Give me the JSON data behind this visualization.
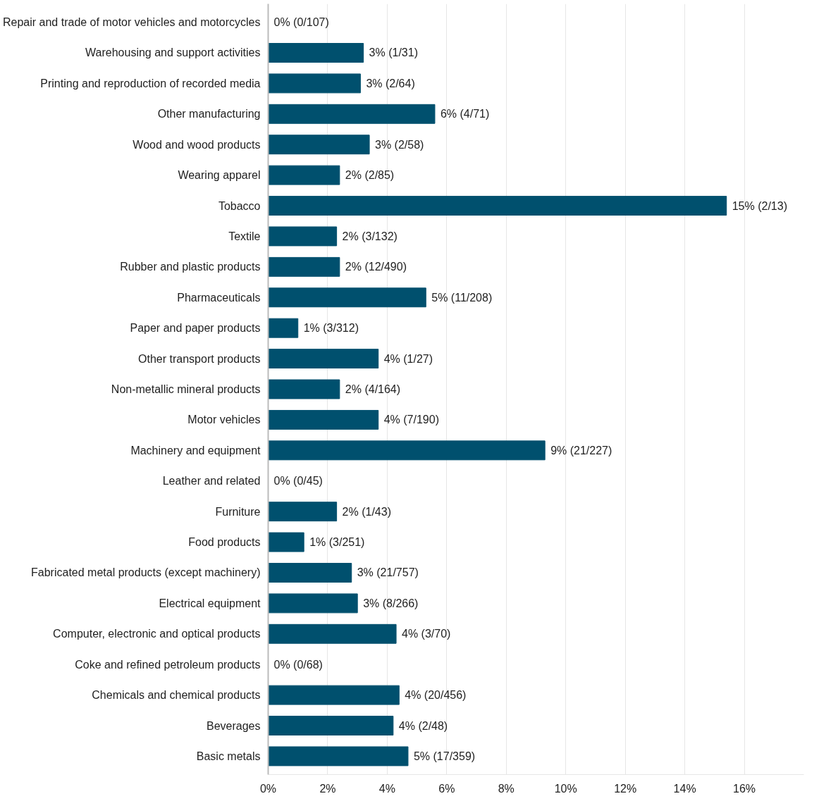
{
  "chart_data": {
    "type": "bar",
    "orientation": "horizontal",
    "categories": [
      "Repair and trade of motor vehicles and motorcycles",
      "Warehousing and support activities",
      "Printing and reproduction of recorded media",
      "Other manufacturing",
      "Wood and wood products",
      "Wearing apparel",
      "Tobacco",
      "Textile",
      "Rubber and plastic products",
      "Pharmaceuticals",
      "Paper and paper products",
      "Other transport products",
      "Non-metallic mineral products",
      "Motor vehicles",
      "Machinery and equipment",
      "Leather and related",
      "Furniture",
      "Food products",
      "Fabricated metal products (except machinery)",
      "Electrical equipment",
      "Computer, electronic and optical products",
      "Coke and refined petroleum products",
      "Chemicals and chemical products",
      "Beverages",
      "Basic metals"
    ],
    "values": [
      0,
      3.2,
      3.1,
      5.6,
      3.4,
      2.4,
      15.4,
      2.3,
      2.4,
      5.3,
      1.0,
      3.7,
      2.4,
      3.7,
      9.3,
      0,
      2.3,
      1.2,
      2.8,
      3.0,
      4.3,
      0,
      4.4,
      4.2,
      4.7
    ],
    "value_labels": [
      "0% (0/107)",
      "3% (1/31)",
      "3% (2/64)",
      "6% (4/71)",
      "3% (2/58)",
      "2% (2/85)",
      "15% (2/13)",
      "2% (3/132)",
      "2% (12/490)",
      "5% (11/208)",
      "1% (3/312)",
      "4% (1/27)",
      "2% (4/164)",
      "4% (7/190)",
      "9% (21/227)",
      "0% (0/45)",
      "2% (1/43)",
      "1% (3/251)",
      "3% (21/757)",
      "3% (8/266)",
      "4% (3/70)",
      "0% (0/68)",
      "4% (20/456)",
      "4% (2/48)",
      "5% (17/359)"
    ],
    "color": "#00506e",
    "xlim": [
      0,
      18
    ],
    "xticks": [
      {
        "value": 0,
        "label": "0%"
      },
      {
        "value": 2,
        "label": "2%"
      },
      {
        "value": 4,
        "label": "4%"
      },
      {
        "value": 6,
        "label": "6%"
      },
      {
        "value": 8,
        "label": "8%"
      },
      {
        "value": 10,
        "label": "10%"
      },
      {
        "value": 12,
        "label": "12%"
      },
      {
        "value": 14,
        "label": "14%"
      },
      {
        "value": 16,
        "label": "16%"
      }
    ],
    "grid": "x"
  }
}
